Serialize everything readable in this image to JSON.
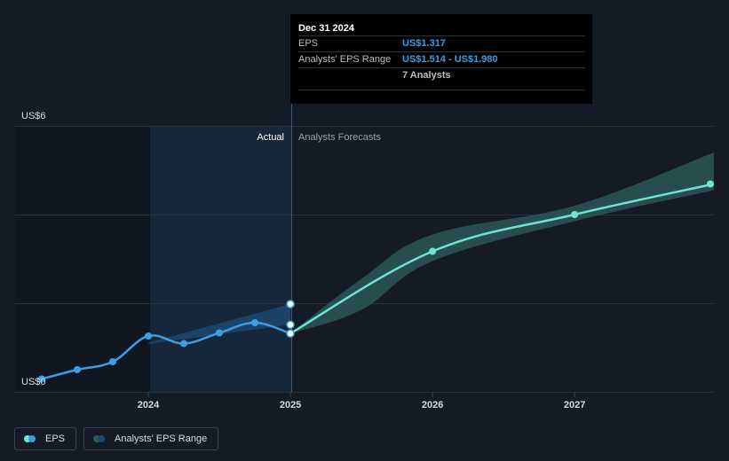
{
  "chart_data": {
    "type": "line",
    "title": "",
    "y_axis": {
      "top_label": "US$6",
      "bottom_label": "US$0",
      "ylim": [
        0,
        6
      ],
      "gridlines": [
        0,
        2,
        4,
        6
      ]
    },
    "x_axis": {
      "ticks": [
        "2024",
        "2025",
        "2026",
        "2027"
      ],
      "xlim": [
        2023.25,
        2027.98
      ]
    },
    "region_labels": {
      "actual": "Actual",
      "forecast": "Analysts Forecasts"
    },
    "series": [
      {
        "name": "EPS",
        "kind": "actual",
        "color": "#3d9ee5",
        "points": [
          {
            "x": 2023.25,
            "y": 0.29
          },
          {
            "x": 2023.5,
            "y": 0.5
          },
          {
            "x": 2023.75,
            "y": 0.68
          },
          {
            "x": 2024.0,
            "y": 1.26
          },
          {
            "x": 2024.25,
            "y": 1.09
          },
          {
            "x": 2024.5,
            "y": 1.33
          },
          {
            "x": 2024.75,
            "y": 1.56
          },
          {
            "x": 2025.0,
            "y": 1.317
          }
        ]
      },
      {
        "name": "EPS Forecast",
        "kind": "forecast",
        "color": "#6fe3d4",
        "points": [
          {
            "x": 2025.0,
            "y": 1.317
          },
          {
            "x": 2026.0,
            "y": 3.17
          },
          {
            "x": 2027.0,
            "y": 4.0
          },
          {
            "x": 2027.98,
            "y": 4.69
          }
        ]
      }
    ],
    "ranges": [
      {
        "name": "Analysts' EPS Range (past)",
        "color": "#1f4a73",
        "points": [
          {
            "x": 2024.0,
            "low": 1.08,
            "high": 1.11
          },
          {
            "x": 2025.0,
            "low": 1.514,
            "high": 1.98
          }
        ]
      },
      {
        "name": "Analysts' EPS Range (forecast)",
        "color": "#2d5a5a",
        "points": [
          {
            "x": 2025.0,
            "low": 1.317,
            "high": 1.317
          },
          {
            "x": 2025.5,
            "low": 1.85,
            "high": 2.55
          },
          {
            "x": 2026.0,
            "low": 2.95,
            "high": 3.55
          },
          {
            "x": 2027.0,
            "low": 3.85,
            "high": 4.2
          },
          {
            "x": 2027.98,
            "low": 4.55,
            "high": 5.4
          }
        ]
      }
    ],
    "range_markers": [
      {
        "x": 2025.0,
        "y": 1.98
      },
      {
        "x": 2025.0,
        "y": 1.514
      }
    ]
  },
  "tooltip": {
    "date": "Dec 31 2024",
    "eps_label": "EPS",
    "eps_value": "US$1.317",
    "range_label": "Analysts' EPS Range",
    "range_value": "US$1.514 - US$1.980",
    "analysts": "7 Analysts"
  },
  "legend": {
    "eps": {
      "label": "EPS",
      "colors": [
        "#6fe3d4",
        "#3d9ee5"
      ]
    },
    "range": {
      "label": "Analysts' EPS Range",
      "colors": [
        "#2d5a5a",
        "#1f4a73"
      ]
    }
  }
}
